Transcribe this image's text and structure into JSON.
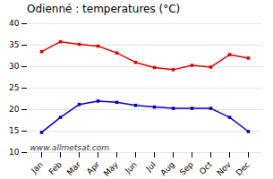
{
  "chart_data": {
    "type": "line",
    "title": "Odienné : temperatures (°C)",
    "categories": [
      "Jan",
      "Feb",
      "Mar",
      "Apr",
      "May",
      "Jun",
      "Jul",
      "Aug",
      "Sep",
      "Oct",
      "Nov",
      "Dec"
    ],
    "series": [
      {
        "color": "#dd0000",
        "marker": "square",
        "values": [
          33.5,
          35.8,
          35.2,
          34.8,
          33.2,
          31.0,
          29.8,
          29.3,
          30.3,
          29.9,
          32.8,
          32.0
        ]
      },
      {
        "color": "#0000cc",
        "marker": "square",
        "values": [
          14.7,
          18.2,
          21.2,
          22.0,
          21.7,
          21.0,
          20.6,
          20.3,
          20.3,
          20.3,
          18.2,
          14.9
        ]
      }
    ],
    "ylim": [
      10,
      40
    ],
    "yticks": [
      10,
      15,
      20,
      25,
      30,
      35,
      40
    ],
    "grid": true,
    "annotations": [
      "www.allmetsat.com"
    ]
  }
}
